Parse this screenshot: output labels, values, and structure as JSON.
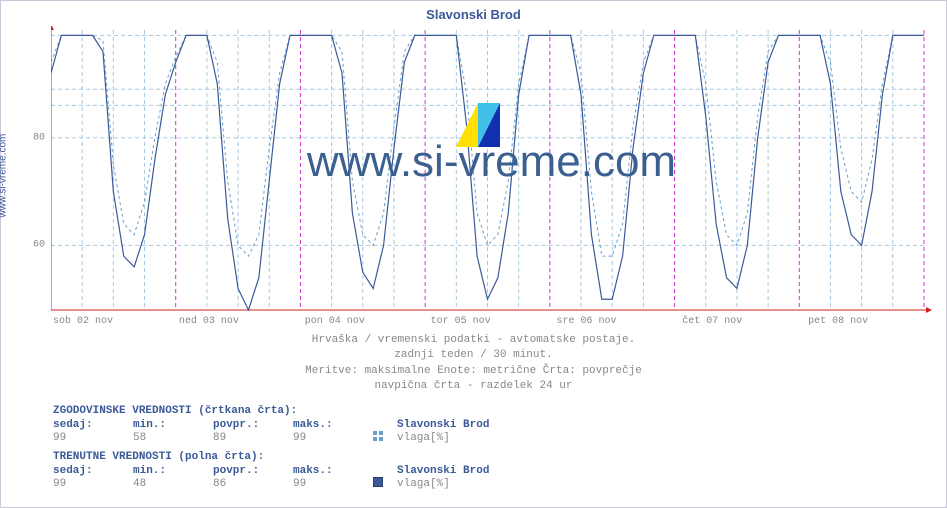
{
  "attribution": "www.si-vreme.com",
  "chart": {
    "title": "Slavonski Brod",
    "type": "line",
    "background_color": "#ffffff",
    "grid_color": "#a8c8e0",
    "grid_dash": "4,3",
    "day_separator_color": "#d030d0",
    "day_separator_dash": "4,3",
    "axis_color": "#d02020",
    "ylim": [
      48,
      100
    ],
    "yticks": [
      60,
      80
    ],
    "ytick_labels": [
      "60",
      "80"
    ],
    "hlines": [
      89,
      99
    ],
    "hline_sep": 86,
    "x_days": [
      "sob 02 nov",
      "ned 03 nov",
      "pon 04 nov",
      "tor 05 nov",
      "sre 06 nov",
      "čet 07 nov",
      "pet 08 nov"
    ],
    "series_hist": {
      "color": "#68a0c8",
      "label": "vlaga[%]",
      "dash": "3,3",
      "data": [
        [
          0,
          94
        ],
        [
          2,
          99
        ],
        [
          4,
          99
        ],
        [
          6,
          99
        ],
        [
          8,
          99
        ],
        [
          10,
          98
        ],
        [
          12,
          75
        ],
        [
          14,
          64
        ],
        [
          16,
          62
        ],
        [
          18,
          68
        ],
        [
          20,
          80
        ],
        [
          22,
          90
        ],
        [
          24,
          95
        ],
        [
          26,
          99
        ],
        [
          28,
          99
        ],
        [
          30,
          99
        ],
        [
          32,
          94
        ],
        [
          34,
          72
        ],
        [
          36,
          60
        ],
        [
          38,
          58
        ],
        [
          40,
          62
        ],
        [
          42,
          78
        ],
        [
          44,
          92
        ],
        [
          46,
          99
        ],
        [
          48,
          99
        ],
        [
          50,
          99
        ],
        [
          52,
          99
        ],
        [
          54,
          99
        ],
        [
          56,
          96
        ],
        [
          58,
          72
        ],
        [
          60,
          62
        ],
        [
          62,
          60
        ],
        [
          64,
          66
        ],
        [
          66,
          82
        ],
        [
          68,
          96
        ],
        [
          70,
          99
        ],
        [
          72,
          99
        ],
        [
          74,
          99
        ],
        [
          76,
          99
        ],
        [
          78,
          99
        ],
        [
          80,
          88
        ],
        [
          82,
          66
        ],
        [
          84,
          60
        ],
        [
          86,
          62
        ],
        [
          88,
          72
        ],
        [
          90,
          90
        ],
        [
          92,
          99
        ],
        [
          94,
          99
        ],
        [
          96,
          99
        ],
        [
          98,
          99
        ],
        [
          100,
          99
        ],
        [
          102,
          92
        ],
        [
          104,
          70
        ],
        [
          106,
          58
        ],
        [
          108,
          58
        ],
        [
          110,
          64
        ],
        [
          112,
          82
        ],
        [
          114,
          94
        ],
        [
          116,
          99
        ],
        [
          118,
          99
        ],
        [
          120,
          99
        ],
        [
          122,
          99
        ],
        [
          124,
          99
        ],
        [
          126,
          90
        ],
        [
          128,
          72
        ],
        [
          130,
          62
        ],
        [
          132,
          60
        ],
        [
          134,
          66
        ],
        [
          136,
          84
        ],
        [
          138,
          96
        ],
        [
          140,
          99
        ],
        [
          142,
          99
        ],
        [
          144,
          99
        ],
        [
          146,
          99
        ],
        [
          148,
          99
        ],
        [
          150,
          94
        ],
        [
          152,
          78
        ],
        [
          154,
          70
        ],
        [
          156,
          68
        ],
        [
          158,
          76
        ],
        [
          160,
          90
        ],
        [
          162,
          99
        ],
        [
          164,
          99
        ],
        [
          166,
          99
        ],
        [
          168,
          99
        ]
      ]
    },
    "series_curr": {
      "color": "#3b5998",
      "label": "vlaga[%]",
      "data": [
        [
          0,
          92
        ],
        [
          2,
          99
        ],
        [
          4,
          99
        ],
        [
          6,
          99
        ],
        [
          8,
          99
        ],
        [
          10,
          96
        ],
        [
          12,
          70
        ],
        [
          14,
          58
        ],
        [
          16,
          56
        ],
        [
          18,
          62
        ],
        [
          20,
          76
        ],
        [
          22,
          88
        ],
        [
          24,
          94
        ],
        [
          26,
          99
        ],
        [
          28,
          99
        ],
        [
          30,
          99
        ],
        [
          32,
          90
        ],
        [
          34,
          65
        ],
        [
          36,
          52
        ],
        [
          38,
          48
        ],
        [
          40,
          54
        ],
        [
          42,
          72
        ],
        [
          44,
          90
        ],
        [
          46,
          99
        ],
        [
          48,
          99
        ],
        [
          50,
          99
        ],
        [
          52,
          99
        ],
        [
          54,
          99
        ],
        [
          56,
          92
        ],
        [
          58,
          66
        ],
        [
          60,
          55
        ],
        [
          62,
          52
        ],
        [
          64,
          60
        ],
        [
          66,
          78
        ],
        [
          68,
          94
        ],
        [
          70,
          99
        ],
        [
          72,
          99
        ],
        [
          74,
          99
        ],
        [
          76,
          99
        ],
        [
          78,
          99
        ],
        [
          80,
          82
        ],
        [
          82,
          58
        ],
        [
          84,
          50
        ],
        [
          86,
          54
        ],
        [
          88,
          66
        ],
        [
          90,
          88
        ],
        [
          92,
          99
        ],
        [
          94,
          99
        ],
        [
          96,
          99
        ],
        [
          98,
          99
        ],
        [
          100,
          99
        ],
        [
          102,
          88
        ],
        [
          104,
          62
        ],
        [
          106,
          50
        ],
        [
          108,
          50
        ],
        [
          110,
          58
        ],
        [
          112,
          78
        ],
        [
          114,
          92
        ],
        [
          116,
          99
        ],
        [
          118,
          99
        ],
        [
          120,
          99
        ],
        [
          122,
          99
        ],
        [
          124,
          99
        ],
        [
          126,
          84
        ],
        [
          128,
          64
        ],
        [
          130,
          54
        ],
        [
          132,
          52
        ],
        [
          134,
          60
        ],
        [
          136,
          80
        ],
        [
          138,
          94
        ],
        [
          140,
          99
        ],
        [
          142,
          99
        ],
        [
          144,
          99
        ],
        [
          146,
          99
        ],
        [
          148,
          99
        ],
        [
          150,
          90
        ],
        [
          152,
          70
        ],
        [
          154,
          62
        ],
        [
          156,
          60
        ],
        [
          158,
          70
        ],
        [
          160,
          88
        ],
        [
          162,
          99
        ],
        [
          164,
          99
        ],
        [
          166,
          99
        ],
        [
          168,
          99
        ]
      ]
    }
  },
  "meta": {
    "line1": "Hrvaška / vremenski podatki - avtomatske postaje.",
    "line2": "zadnji teden / 30 minut.",
    "line3": "Meritve: maksimalne  Enote: metrične  Črta: povprečje",
    "line4": "navpična črta - razdelek 24 ur"
  },
  "stat_hist": {
    "title": "ZGODOVINSKE VREDNOSTI (črtkana črta):",
    "cols": [
      "sedaj:",
      "min.:",
      "povpr.:",
      "maks.:"
    ],
    "location": "Slavonski Brod",
    "vals": [
      "99",
      "58",
      "89",
      "99"
    ],
    "unit": "vlaga[%]"
  },
  "stat_curr": {
    "title": "TRENUTNE VREDNOSTI (polna črta):",
    "cols": [
      "sedaj:",
      "min.:",
      "povpr.:",
      "maks.:"
    ],
    "location": "Slavonski Brod",
    "vals": [
      "99",
      "48",
      "86",
      "99"
    ],
    "unit": "vlaga[%]"
  },
  "watermark": {
    "text": "www.si-vreme.com",
    "logo_colors": [
      "#ffe000",
      "#40c0e8",
      "#1030b0"
    ]
  }
}
